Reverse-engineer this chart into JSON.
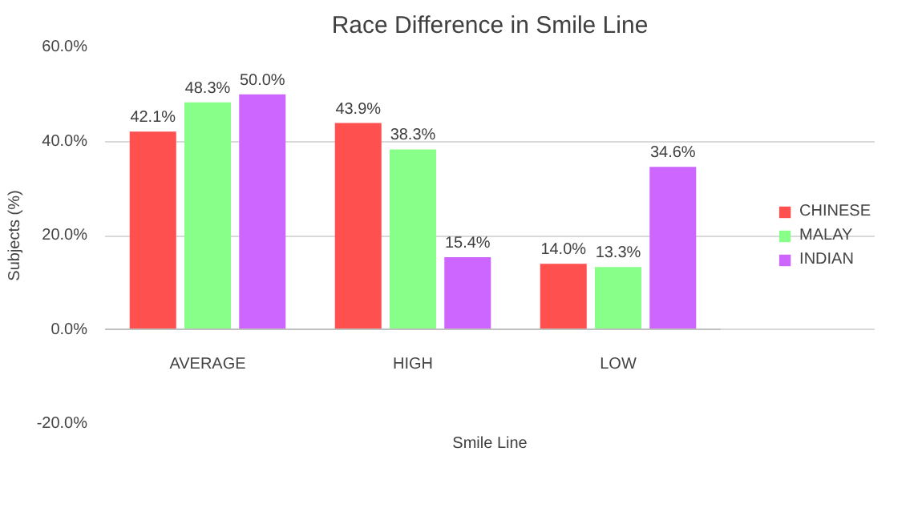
{
  "chart_data": {
    "type": "bar",
    "title": "Race Difference in Smile Line",
    "xlabel": "Smile Line",
    "ylabel": "Subjects (%)",
    "categories": [
      "AVERAGE",
      "HIGH",
      "LOW"
    ],
    "series": [
      {
        "name": "CHINESE",
        "color": "#ff5050",
        "values": [
          42.1,
          43.9,
          14.0
        ],
        "value_labels": [
          "42.1%",
          "43.9%",
          "14.0%"
        ]
      },
      {
        "name": "MALAY",
        "color": "#88ff88",
        "values": [
          48.3,
          38.3,
          13.3
        ],
        "value_labels": [
          "48.3%",
          "38.3%",
          "13.3%"
        ]
      },
      {
        "name": "INDIAN",
        "color": "#cc66ff",
        "values": [
          50.0,
          15.4,
          34.6
        ],
        "value_labels": [
          "50.0%",
          "15.4%",
          "34.6%"
        ]
      }
    ],
    "ylim": [
      -20,
      60
    ],
    "yticks": [
      {
        "value": -20,
        "label": "-20.0%"
      },
      {
        "value": 0,
        "label": "0.0%"
      },
      {
        "value": 20,
        "label": "20.0%"
      },
      {
        "value": 40,
        "label": "40.0%"
      },
      {
        "value": 60,
        "label": "60.0%"
      }
    ],
    "grid": "y",
    "legend": "right"
  }
}
